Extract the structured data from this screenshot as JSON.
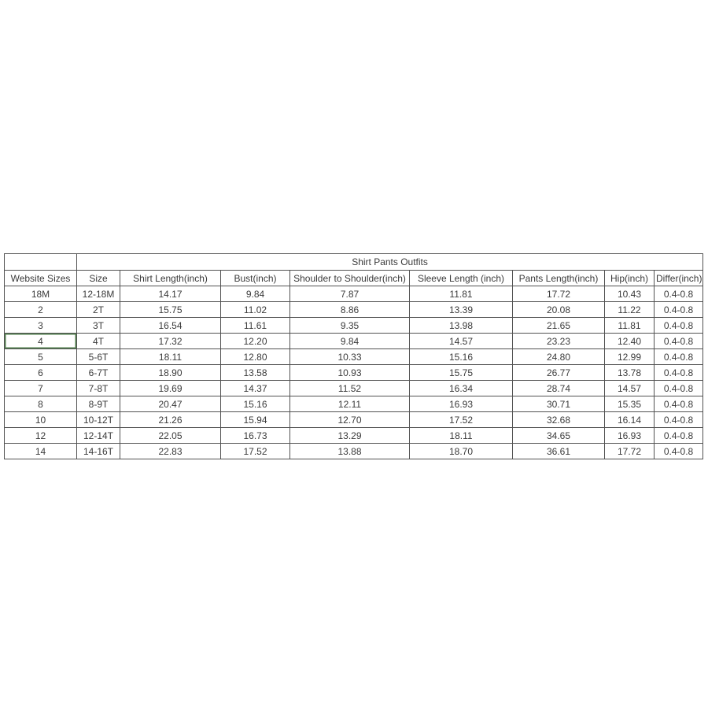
{
  "table": {
    "title": "Shirt Pants Outfits",
    "columns": [
      "Website Sizes",
      "Size",
      "Shirt Length(inch)",
      "Bust(inch)",
      "Shoulder to Shoulder(inch)",
      "Sleeve Length (inch)",
      "Pants Length(inch)",
      "Hip(inch)",
      "Differ(inch)"
    ],
    "rows": [
      [
        "18M",
        "12-18M",
        "14.17",
        "9.84",
        "7.87",
        "11.81",
        "17.72",
        "10.43",
        "0.4-0.8"
      ],
      [
        "2",
        "2T",
        "15.75",
        "11.02",
        "8.86",
        "13.39",
        "20.08",
        "11.22",
        "0.4-0.8"
      ],
      [
        "3",
        "3T",
        "16.54",
        "11.61",
        "9.35",
        "13.98",
        "21.65",
        "11.81",
        "0.4-0.8"
      ],
      [
        "4",
        "4T",
        "17.32",
        "12.20",
        "9.84",
        "14.57",
        "23.23",
        "12.40",
        "0.4-0.8"
      ],
      [
        "5",
        "5-6T",
        "18.11",
        "12.80",
        "10.33",
        "15.16",
        "24.80",
        "12.99",
        "0.4-0.8"
      ],
      [
        "6",
        "6-7T",
        "18.90",
        "13.58",
        "10.93",
        "15.75",
        "26.77",
        "13.78",
        "0.4-0.8"
      ],
      [
        "7",
        "7-8T",
        "19.69",
        "14.37",
        "11.52",
        "16.34",
        "28.74",
        "14.57",
        "0.4-0.8"
      ],
      [
        "8",
        "8-9T",
        "20.47",
        "15.16",
        "12.11",
        "16.93",
        "30.71",
        "15.35",
        "0.4-0.8"
      ],
      [
        "10",
        "10-12T",
        "21.26",
        "15.94",
        "12.70",
        "17.52",
        "32.68",
        "16.14",
        "0.4-0.8"
      ],
      [
        "12",
        "12-14T",
        "22.05",
        "16.73",
        "13.29",
        "18.11",
        "34.65",
        "16.93",
        "0.4-0.8"
      ],
      [
        "14",
        "14-16T",
        "22.83",
        "17.52",
        "13.88",
        "18.70",
        "36.61",
        "17.72",
        "0.4-0.8"
      ]
    ],
    "selected_cell": {
      "row_index": 3,
      "col_index": 0
    }
  },
  "colors": {
    "background": "#ffffff",
    "border": "#525252",
    "title_top_border": "#cfcfcf",
    "text": "#3a3a3a",
    "selection_ring": "#53804f"
  }
}
